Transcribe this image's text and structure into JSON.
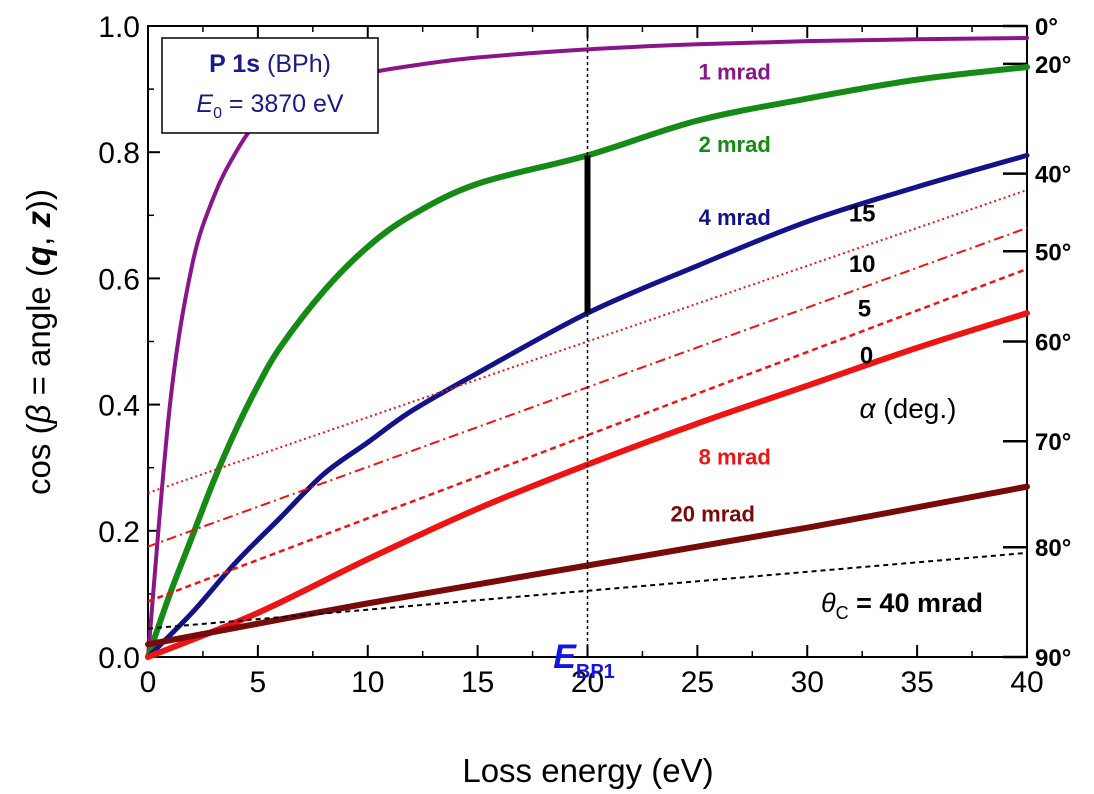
{
  "chart_data": {
    "type": "line",
    "xlabel": "Loss energy (eV)",
    "ylabel": {
      "prefix": "cos (",
      "beta": "β",
      "middle": " = angle (",
      "q": "q",
      "comma": ", ",
      "z": "z",
      "suffix": "))"
    },
    "xlim": [
      0,
      40
    ],
    "ylim": [
      0,
      1
    ],
    "x_ticks": [
      "0",
      "5",
      "10",
      "15",
      "20",
      "25",
      "30",
      "35",
      "40"
    ],
    "y_ticks": [
      "0.0",
      "0.2",
      "0.4",
      "0.6",
      "0.8",
      "1.0"
    ],
    "right_axis": {
      "ticks": [
        {
          "label": "0°",
          "cos": 1.0
        },
        {
          "label": "20°",
          "cos": 0.94
        },
        {
          "label": "40°",
          "cos": 0.766
        },
        {
          "label": "50°",
          "cos": 0.643
        },
        {
          "label": "60°",
          "cos": 0.5
        },
        {
          "label": "70°",
          "cos": 0.342
        },
        {
          "label": "80°",
          "cos": 0.174
        },
        {
          "label": "90°",
          "cos": 0.0
        }
      ]
    },
    "legend_box": {
      "line1_bold": "P 1s",
      "line1_rest": "(BPh)",
      "line2_symbol": "E",
      "line2_sub": "0",
      "line2_rest": " = 3870 eV"
    },
    "vertical_marker": {
      "x": 20,
      "label": "E",
      "label_sub": "BP1",
      "label_color": "#1515e0"
    },
    "bar_marker": {
      "x": 20,
      "y_from": 0.545,
      "y_to": 0.795
    },
    "alpha_title": {
      "symbol": "α",
      "text": "(deg.)"
    },
    "theta_label": {
      "symbol": "θ",
      "sub": "C",
      "text": " = 40 mrad"
    },
    "series": [
      {
        "name": "1 mrad",
        "color": "#8a148a",
        "width": 4,
        "x": [
          0,
          1,
          2,
          3,
          4,
          5,
          6,
          8,
          10,
          12,
          15,
          20,
          25,
          30,
          35,
          40
        ],
        "y": [
          0,
          0.4,
          0.62,
          0.73,
          0.8,
          0.85,
          0.875,
          0.905,
          0.925,
          0.937,
          0.95,
          0.963,
          0.971,
          0.976,
          0.979,
          0.981
        ]
      },
      {
        "name": "2 mrad",
        "color": "#158a15",
        "width": 6,
        "x": [
          0,
          1,
          2,
          3,
          4,
          5,
          6,
          8,
          10,
          12,
          15,
          20,
          25,
          30,
          35,
          40
        ],
        "y": [
          0,
          0.1,
          0.19,
          0.28,
          0.36,
          0.43,
          0.49,
          0.58,
          0.65,
          0.7,
          0.75,
          0.795,
          0.85,
          0.885,
          0.915,
          0.935
        ]
      },
      {
        "name": "4 mrad",
        "color": "#12128a",
        "width": 5,
        "x": [
          0,
          2,
          4,
          6,
          8,
          10,
          12,
          15,
          20,
          25,
          30,
          35,
          40
        ],
        "y": [
          0,
          0.07,
          0.15,
          0.22,
          0.29,
          0.34,
          0.39,
          0.45,
          0.545,
          0.62,
          0.69,
          0.745,
          0.795
        ]
      },
      {
        "name": "8 mrad",
        "color": "#ee1414",
        "width": 6,
        "x": [
          0,
          5,
          10,
          15,
          20,
          25,
          30,
          35,
          40
        ],
        "y": [
          0,
          0.07,
          0.155,
          0.235,
          0.305,
          0.37,
          0.43,
          0.49,
          0.545
        ]
      },
      {
        "name": "20 mrad",
        "color": "#780a0a",
        "width": 6,
        "x": [
          0,
          10,
          20,
          30,
          40
        ],
        "y": [
          0.02,
          0.085,
          0.145,
          0.205,
          0.27
        ]
      },
      {
        "name": "θC = 40 mrad",
        "color": "#000000",
        "width": 2,
        "dash": "5,4",
        "x": [
          0,
          40
        ],
        "y": [
          0.045,
          0.165
        ]
      },
      {
        "name": "15",
        "color": "#ee1414",
        "width": 2,
        "dash": "2,3",
        "x": [
          0,
          40
        ],
        "y": [
          0.26,
          0.74
        ]
      },
      {
        "name": "10",
        "color": "#ee1414",
        "width": 2,
        "dash": "10,4,2,4",
        "x": [
          0,
          40
        ],
        "y": [
          0.175,
          0.68
        ]
      },
      {
        "name": "5",
        "color": "#ee1414",
        "width": 2.5,
        "dash": "6,4",
        "x": [
          0,
          40
        ],
        "y": [
          0.088,
          0.615
        ]
      }
    ],
    "curve_labels": [
      {
        "text": "1 mrad",
        "x": 26.7,
        "y": 0.915,
        "color": "#8a148a"
      },
      {
        "text": "2 mrad",
        "x": 26.7,
        "y": 0.8,
        "color": "#158a15"
      },
      {
        "text": "4 mrad",
        "x": 26.7,
        "y": 0.685,
        "color": "#12128a"
      },
      {
        "text": "8 mrad",
        "x": 26.7,
        "y": 0.305,
        "color": "#ee1414"
      },
      {
        "text": "20 mrad",
        "x": 25.7,
        "y": 0.215,
        "color": "#780a0a"
      }
    ],
    "alpha_labels": [
      {
        "text": "15",
        "x": 32.5,
        "y": 0.69
      },
      {
        "text": "10",
        "x": 32.5,
        "y": 0.61
      },
      {
        "text": "5",
        "x": 32.6,
        "y": 0.54
      },
      {
        "text": "0",
        "x": 32.7,
        "y": 0.465
      }
    ]
  }
}
